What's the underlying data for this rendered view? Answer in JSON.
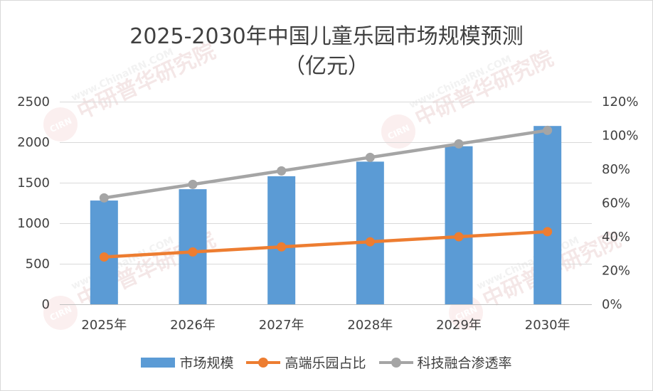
{
  "chart_data": {
    "type": "bar",
    "title": "2025-2030年中国儿童乐园市场规模预测",
    "subtitle": "（亿元）",
    "categories": [
      "2025年",
      "2026年",
      "2027年",
      "2028年",
      "2029年",
      "2030年"
    ],
    "y_left": {
      "range": [
        0,
        2500
      ],
      "ticks": [
        "0",
        "500",
        "1000",
        "1500",
        "2000",
        "2500"
      ]
    },
    "y_right": {
      "range": [
        0,
        1.2
      ],
      "ticks": [
        "0%",
        "20%",
        "40%",
        "60%",
        "80%",
        "100%",
        "120%"
      ]
    },
    "grid": "horizontal",
    "legend_position": "bottom",
    "series": [
      {
        "name": "市场规模",
        "type": "bar",
        "axis": "left",
        "color": "#5b9bd5",
        "values": [
          1280,
          1420,
          1580,
          1760,
          1950,
          2200
        ]
      },
      {
        "name": "高端乐园占比",
        "type": "line",
        "axis": "right",
        "color": "#ed7d31",
        "values": [
          0.28,
          0.31,
          0.34,
          0.37,
          0.4,
          0.43
        ]
      },
      {
        "name": "科技融合渗透率",
        "type": "line",
        "axis": "right",
        "color": "#a5a5a5",
        "values": [
          0.63,
          0.71,
          0.79,
          0.87,
          0.95,
          1.03
        ]
      }
    ]
  },
  "watermark": {
    "text_cn": "中研普华研究院",
    "text_en": "www.ChinaIRN.COM",
    "logo": "CIRN"
  }
}
